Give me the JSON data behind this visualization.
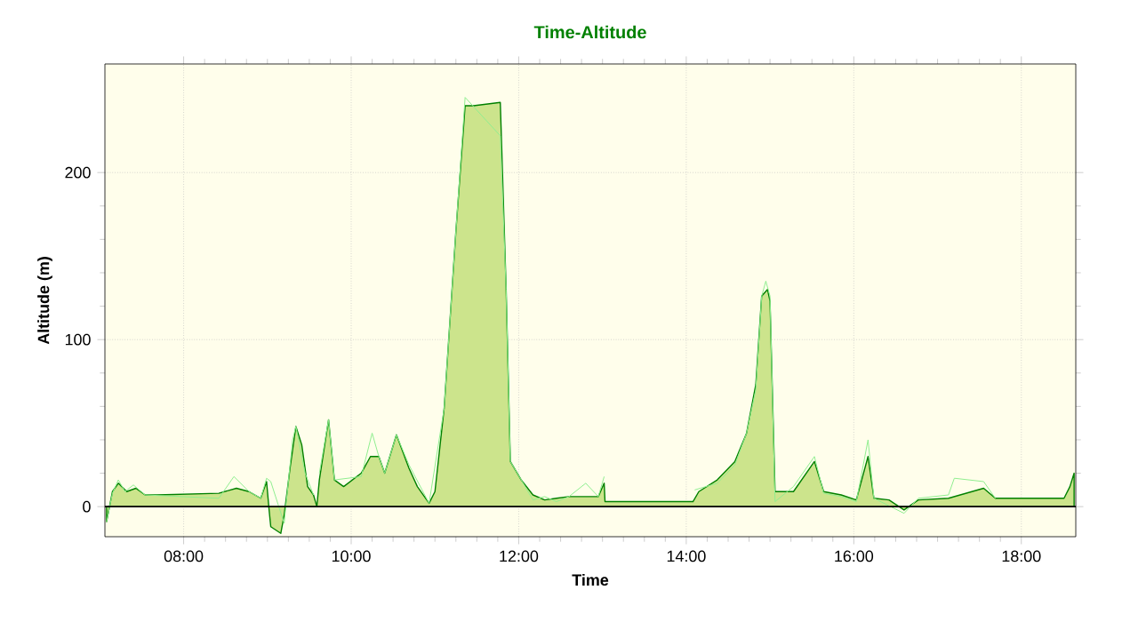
{
  "chart_data": {
    "type": "area",
    "title": "Time-Altitude",
    "xlabel": "Time",
    "ylabel": "Altitude (m)",
    "xlim": [
      7.06,
      18.65
    ],
    "ylim": [
      -18,
      265
    ],
    "xticks": [
      {
        "value": 8,
        "label": "08:00"
      },
      {
        "value": 10,
        "label": "10:00"
      },
      {
        "value": 12,
        "label": "12:00"
      },
      {
        "value": 14,
        "label": "14:00"
      },
      {
        "value": 16,
        "label": "16:00"
      },
      {
        "value": 18,
        "label": "18:00"
      }
    ],
    "yticks": [
      0,
      100,
      200
    ],
    "grid": true,
    "series": [
      {
        "color": "#008000",
        "x": [
          7.08,
          7.15,
          7.22,
          7.32,
          7.43,
          7.54,
          7.68,
          8.42,
          8.63,
          8.78,
          8.92,
          8.99,
          9.02,
          9.04,
          9.16,
          9.2,
          9.27,
          9.34,
          9.41,
          9.48,
          9.55,
          9.59,
          9.62,
          9.73,
          9.8,
          9.91,
          10.12,
          10.23,
          10.33,
          10.4,
          10.54,
          10.69,
          10.79,
          10.93,
          11.0,
          11.11,
          11.25,
          11.36,
          11.46,
          11.78,
          11.85,
          11.9,
          12.03,
          12.17,
          12.31,
          12.45,
          12.6,
          12.95,
          13.02,
          13.03,
          14.08,
          14.15,
          14.37,
          14.58,
          14.72,
          14.83,
          14.9,
          14.97,
          15.0,
          15.06,
          15.28,
          15.53,
          15.64,
          15.85,
          16.03,
          16.17,
          16.24,
          16.42,
          16.6,
          16.77,
          17.13,
          17.55,
          17.69,
          17.83,
          18.51,
          18.58,
          18.63
        ],
        "values": [
          -9,
          9,
          14,
          9,
          11,
          7,
          7,
          8,
          11,
          9,
          5,
          15,
          -2,
          -12,
          -16,
          -5,
          23,
          48,
          37,
          12,
          7,
          0,
          16,
          52,
          16,
          12,
          20,
          30,
          30,
          20,
          43,
          23,
          12,
          2,
          9,
          59,
          165,
          240,
          240,
          242,
          130,
          27,
          16,
          7,
          4,
          5,
          6,
          6,
          14,
          3,
          3,
          9,
          16,
          27,
          44,
          73,
          126,
          130,
          123,
          9,
          9,
          27,
          9,
          7,
          4,
          30,
          5,
          4,
          -2,
          4,
          5,
          11,
          5,
          5,
          5,
          12,
          20
        ]
      },
      {
        "type": "line",
        "color": "#90ee90",
        "x": [
          7.08,
          7.15,
          7.22,
          7.3,
          7.4,
          7.54,
          8.42,
          8.6,
          8.78,
          8.92,
          8.99,
          9.04,
          9.2,
          9.3,
          9.34,
          9.45,
          9.55,
          9.58,
          9.62,
          9.73,
          9.8,
          10.12,
          10.25,
          10.33,
          10.4,
          10.54,
          10.69,
          10.93,
          11.11,
          11.25,
          11.36,
          11.78,
          11.85,
          11.9,
          12.03,
          12.17,
          12.31,
          12.45,
          12.6,
          12.8,
          12.95,
          13.02,
          14.08,
          14.1,
          14.37,
          14.58,
          14.72,
          14.83,
          14.9,
          14.95,
          15.0,
          15.06,
          15.28,
          15.53,
          15.64,
          15.85,
          16.03,
          16.17,
          16.24,
          16.6,
          16.77,
          17.13,
          17.2,
          17.55,
          17.69
        ],
        "values": [
          -9,
          8,
          16,
          9,
          13,
          7,
          5,
          18,
          9,
          5,
          17,
          15,
          -10,
          40,
          48,
          20,
          7,
          null,
          20,
          52,
          16,
          18,
          44,
          30,
          20,
          43,
          25,
          2,
          59,
          165,
          245,
          222,
          130,
          27,
          16,
          4,
          6,
          3,
          6,
          14,
          6,
          18,
          null,
          10,
          14,
          25,
          44,
          70,
          126,
          135,
          126,
          3,
          12,
          30,
          8,
          6,
          3,
          40,
          5,
          -4,
          5,
          7,
          17,
          15,
          5
        ]
      }
    ]
  }
}
